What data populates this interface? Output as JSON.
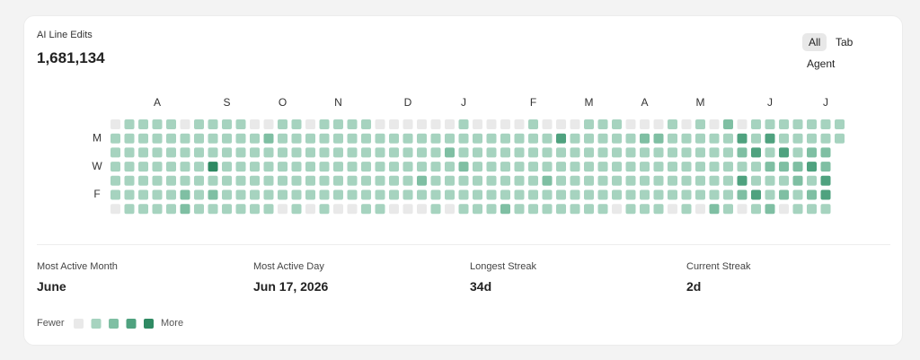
{
  "header": {
    "title": "AI Line Edits",
    "total": "1,681,134"
  },
  "tabs": [
    "All",
    "Tab",
    "Agent"
  ],
  "heatmap": {
    "month_labels": [
      null,
      null,
      null,
      "A",
      null,
      null,
      null,
      null,
      "S",
      null,
      null,
      null,
      "O",
      null,
      null,
      null,
      "N",
      null,
      null,
      null,
      null,
      "D",
      null,
      null,
      null,
      "J",
      null,
      null,
      null,
      null,
      "F",
      null,
      null,
      null,
      "M",
      null,
      null,
      null,
      "A",
      null,
      null,
      null,
      "M",
      null,
      null,
      null,
      null,
      "J",
      null,
      null,
      null,
      "J",
      null
    ],
    "day_labels": [
      null,
      "M",
      null,
      "W",
      null,
      "F",
      null
    ],
    "colors": [
      "#e9e9e9",
      "#a6d3bf",
      "#7fbfa3",
      "#4fa27f",
      "#2f8a63"
    ],
    "levels": [
      [
        0,
        1,
        1,
        1,
        1,
        1,
        0
      ],
      [
        1,
        1,
        1,
        1,
        1,
        1,
        1
      ],
      [
        1,
        1,
        1,
        1,
        1,
        1,
        1
      ],
      [
        1,
        1,
        1,
        1,
        1,
        1,
        1
      ],
      [
        1,
        1,
        1,
        1,
        1,
        1,
        1
      ],
      [
        0,
        1,
        1,
        1,
        1,
        2,
        2
      ],
      [
        1,
        1,
        1,
        1,
        1,
        1,
        1
      ],
      [
        1,
        1,
        1,
        4,
        1,
        2,
        1
      ],
      [
        1,
        1,
        1,
        1,
        1,
        1,
        1
      ],
      [
        1,
        1,
        1,
        1,
        1,
        1,
        1
      ],
      [
        0,
        1,
        1,
        1,
        1,
        1,
        1
      ],
      [
        0,
        2,
        1,
        1,
        1,
        1,
        1
      ],
      [
        1,
        1,
        1,
        1,
        1,
        1,
        0
      ],
      [
        1,
        1,
        1,
        1,
        1,
        1,
        1
      ],
      [
        0,
        1,
        1,
        1,
        1,
        1,
        0
      ],
      [
        1,
        1,
        1,
        1,
        1,
        1,
        1
      ],
      [
        1,
        1,
        1,
        1,
        1,
        1,
        0
      ],
      [
        1,
        1,
        1,
        1,
        1,
        1,
        0
      ],
      [
        1,
        1,
        1,
        1,
        1,
        1,
        1
      ],
      [
        0,
        1,
        1,
        1,
        1,
        1,
        1
      ],
      [
        0,
        1,
        1,
        1,
        1,
        1,
        0
      ],
      [
        0,
        1,
        1,
        1,
        1,
        1,
        0
      ],
      [
        0,
        1,
        1,
        1,
        2,
        1,
        0
      ],
      [
        0,
        1,
        1,
        1,
        1,
        1,
        1
      ],
      [
        0,
        1,
        2,
        1,
        1,
        1,
        0
      ],
      [
        1,
        1,
        1,
        2,
        1,
        1,
        1
      ],
      [
        0,
        1,
        1,
        1,
        1,
        1,
        1
      ],
      [
        0,
        1,
        1,
        1,
        1,
        1,
        1
      ],
      [
        0,
        1,
        1,
        1,
        1,
        1,
        2
      ],
      [
        0,
        1,
        1,
        1,
        1,
        1,
        1
      ],
      [
        1,
        1,
        1,
        1,
        1,
        1,
        1
      ],
      [
        0,
        1,
        1,
        1,
        2,
        1,
        1
      ],
      [
        0,
        3,
        1,
        1,
        1,
        1,
        1
      ],
      [
        0,
        1,
        1,
        1,
        1,
        1,
        1
      ],
      [
        1,
        1,
        1,
        1,
        1,
        1,
        1
      ],
      [
        1,
        1,
        1,
        1,
        1,
        1,
        1
      ],
      [
        1,
        1,
        1,
        1,
        1,
        1,
        0
      ],
      [
        0,
        1,
        1,
        1,
        1,
        1,
        1
      ],
      [
        0,
        2,
        1,
        1,
        1,
        1,
        1
      ],
      [
        0,
        2,
        1,
        1,
        1,
        1,
        1
      ],
      [
        1,
        1,
        1,
        1,
        1,
        1,
        0
      ],
      [
        0,
        1,
        1,
        1,
        1,
        1,
        1
      ],
      [
        1,
        1,
        1,
        1,
        1,
        1,
        0
      ],
      [
        0,
        1,
        1,
        1,
        1,
        1,
        2
      ],
      [
        2,
        1,
        1,
        1,
        1,
        1,
        1
      ],
      [
        0,
        3,
        2,
        1,
        3,
        2,
        0
      ],
      [
        1,
        1,
        3,
        1,
        1,
        3,
        1
      ],
      [
        1,
        3,
        1,
        2,
        1,
        1,
        2
      ],
      [
        1,
        1,
        3,
        2,
        1,
        2,
        0
      ],
      [
        1,
        1,
        1,
        2,
        2,
        1,
        1
      ],
      [
        1,
        1,
        2,
        3,
        1,
        2,
        1
      ],
      [
        1,
        1,
        2,
        2,
        3,
        3,
        1
      ],
      [
        1,
        1
      ]
    ]
  },
  "stats": [
    {
      "label": "Most Active Month",
      "value": "June"
    },
    {
      "label": "Most Active Day",
      "value": "Jun 17, 2026"
    },
    {
      "label": "Longest Streak",
      "value": "34d"
    },
    {
      "label": "Current Streak",
      "value": "2d"
    }
  ],
  "legend": {
    "low": "Fewer",
    "high": "More"
  }
}
